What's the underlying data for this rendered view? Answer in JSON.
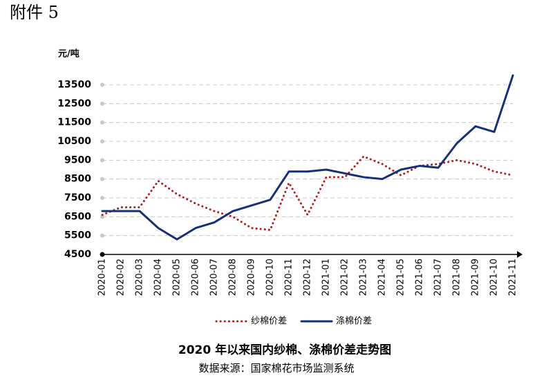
{
  "header": {
    "attachment": "附件 5"
  },
  "chart_data": {
    "type": "line",
    "title": "2020 年以来国内纱棉、涤棉价差走势图",
    "source": "数据来源：国家棉花市场监测系统",
    "y_label": "元/吨",
    "categories": [
      "2020-01",
      "2020-02",
      "2020-03",
      "2020-04",
      "2020-05",
      "2020-06",
      "2020-07",
      "2020-08",
      "2020-09",
      "2020-10",
      "2020-11",
      "2020-12",
      "2021-01",
      "2021-02",
      "2021-03",
      "2021-04",
      "2021-05",
      "2021-06",
      "2021-07",
      "2021-08",
      "2021-09",
      "2021-10",
      "2021-11"
    ],
    "series": [
      {
        "name": "纱棉价差",
        "color": "#b01c1c",
        "style": "dotted",
        "values": [
          6600,
          7000,
          7000,
          8400,
          7700,
          7200,
          6800,
          6500,
          5900,
          5800,
          8300,
          6600,
          8600,
          8600,
          9700,
          9300,
          8700,
          9200,
          9300,
          9500,
          9300,
          8900,
          8700
        ]
      },
      {
        "name": "涤棉价差",
        "color": "#15307a",
        "style": "solid",
        "values": [
          6800,
          6800,
          6800,
          5900,
          5300,
          5900,
          6200,
          6800,
          7100,
          7400,
          8900,
          8900,
          9000,
          8800,
          8600,
          8500,
          9000,
          9200,
          9100,
          10400,
          11300,
          11000,
          14000
        ]
      }
    ],
    "ylim": [
      4500,
      14200
    ],
    "yticks": [
      4500,
      5500,
      6500,
      7500,
      8500,
      9500,
      10500,
      11500,
      12500,
      13500
    ],
    "grid": true,
    "legend": "bottom"
  }
}
